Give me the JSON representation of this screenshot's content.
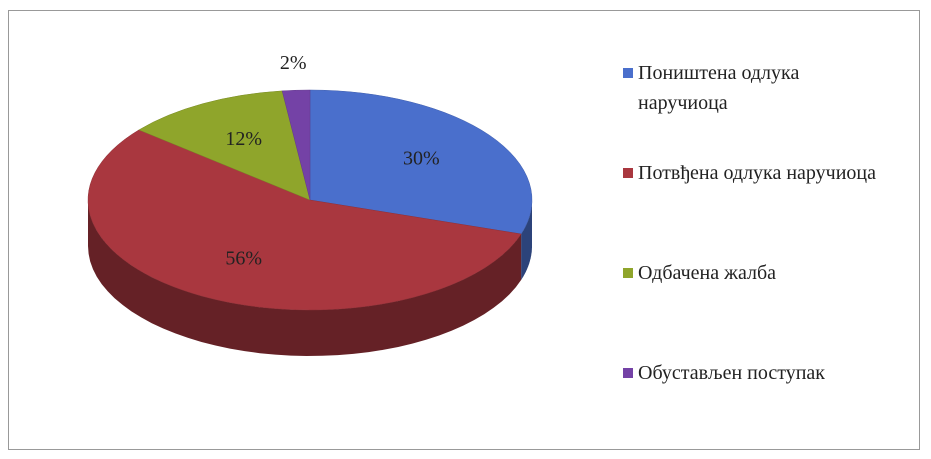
{
  "chart_data": {
    "type": "pie",
    "categories": [
      "Поништена одлука наручиоца",
      "Потвђена одлука наручиоца",
      "Одбачена жалба",
      "Обустављен поступак"
    ],
    "values": [
      30,
      56,
      12,
      2
    ],
    "value_labels": [
      "30%",
      "56%",
      "12%",
      "2%"
    ],
    "colors": [
      "#4a6fcc",
      "#a9373f",
      "#8fa52b",
      "#7442a6"
    ],
    "legend": "right"
  }
}
